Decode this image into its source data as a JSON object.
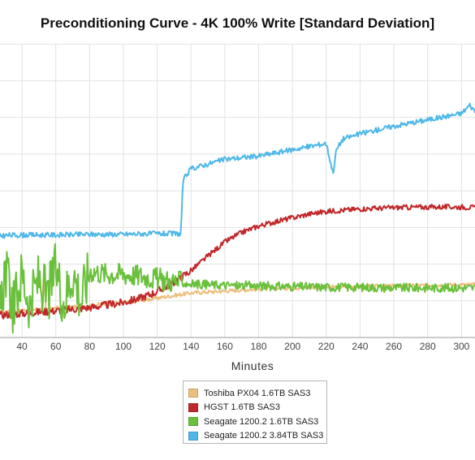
{
  "chart_data": {
    "type": "line",
    "title": "Preconditioning Curve - 4K 100% Write [Standard Deviation]",
    "xlabel": "Minutes",
    "ylabel": "",
    "xlim": [
      27,
      308
    ],
    "ylim": [
      0,
      460
    ],
    "xticks": [
      40,
      60,
      80,
      100,
      120,
      140,
      160,
      180,
      200,
      220,
      240,
      260,
      280,
      300
    ],
    "grid": true,
    "legend_position": "bottom-center",
    "series": [
      {
        "name": "Toshiba PX04 1.6TB SAS3",
        "color": "#EDBF7C",
        "x": [
          27,
          40,
          52,
          53,
          54,
          60,
          70,
          80,
          90,
          100,
          110,
          120,
          130,
          140,
          160,
          180,
          200,
          220,
          240,
          260,
          280,
          300,
          308
        ],
        "y": [
          40,
          43,
          45,
          115,
          44,
          46,
          48,
          50,
          53,
          55,
          58,
          62,
          66,
          70,
          73,
          76,
          78,
          79,
          80,
          81,
          82,
          83,
          83
        ]
      },
      {
        "name": "HGST 1.6TB SAS3",
        "color": "#C0282A",
        "x": [
          27,
          40,
          60,
          80,
          100,
          110,
          120,
          130,
          140,
          150,
          160,
          170,
          180,
          190,
          200,
          210,
          220,
          240,
          260,
          280,
          300,
          308
        ],
        "y": [
          35,
          38,
          42,
          47,
          55,
          62,
          72,
          87,
          105,
          128,
          150,
          165,
          175,
          182,
          188,
          194,
          198,
          202,
          204,
          205,
          205,
          204
        ]
      },
      {
        "name": "Seagate 1200.2 1.6TB SAS3",
        "color": "#6AC03C",
        "x": [
          27,
          30,
          35,
          40,
          45,
          50,
          55,
          60,
          65,
          70,
          75,
          80,
          90,
          100,
          110,
          120,
          130,
          140,
          160,
          180,
          200,
          220,
          240,
          260,
          280,
          300,
          308
        ],
        "y": [
          40,
          110,
          45,
          100,
          50,
          95,
          60,
          110,
          55,
          105,
          60,
          105,
          100,
          100,
          97,
          92,
          88,
          84,
          82,
          81,
          80,
          79,
          79,
          78,
          78,
          78,
          78
        ]
      },
      {
        "name": "Seagate 1200.2 3.84TB SAS3",
        "color": "#4FB8E8",
        "x": [
          27,
          40,
          60,
          80,
          100,
          110,
          120,
          134,
          135,
          136,
          140,
          160,
          180,
          200,
          210,
          220,
          224,
          226,
          230,
          240,
          260,
          280,
          300,
          305,
          308
        ],
        "y": [
          160,
          161,
          161,
          162,
          162,
          163,
          163,
          163,
          235,
          250,
          265,
          280,
          285,
          295,
          300,
          305,
          258,
          295,
          312,
          320,
          332,
          342,
          352,
          365,
          355
        ]
      }
    ]
  }
}
